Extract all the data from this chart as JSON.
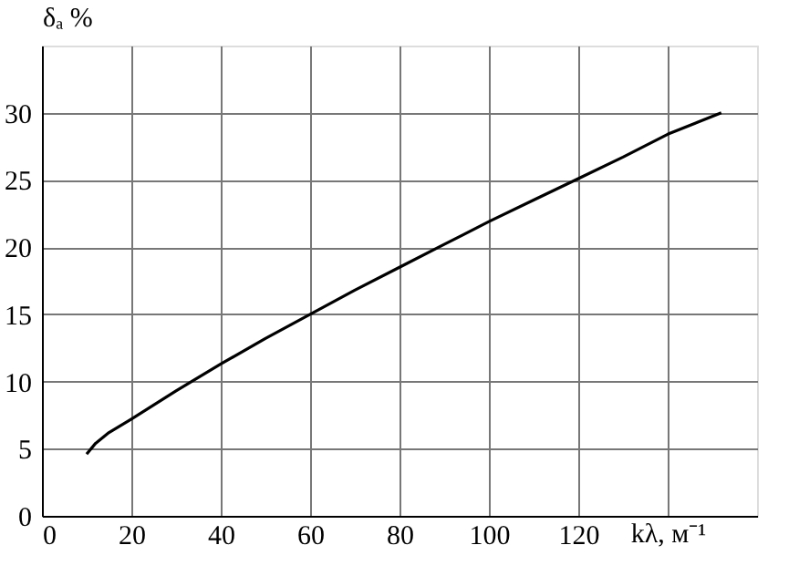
{
  "chart_data": {
    "type": "line",
    "xlabel": "kλ, м⁻¹",
    "ylabel": "δₐ %",
    "x": [
      10,
      12,
      15,
      20,
      30,
      40,
      50,
      60,
      70,
      80,
      90,
      100,
      110,
      120,
      130,
      140,
      152
    ],
    "series": [
      {
        "color": "#000000",
        "values": [
          4.6,
          5.4,
          6.2,
          7.2,
          9.3,
          11.3,
          13.2,
          15.0,
          16.8,
          18.5,
          20.2,
          21.9,
          23.5,
          25.1,
          26.7,
          28.4,
          30.0
        ]
      }
    ],
    "xlim": [
      0,
      160
    ],
    "ylim": [
      0,
      35
    ],
    "xticks": [
      0,
      20,
      40,
      60,
      80,
      100,
      120,
      {
        "value": 140,
        "label": null
      }
    ],
    "yticks": [
      0,
      5,
      10,
      15,
      20,
      25,
      30
    ],
    "grid": true,
    "marker": "none",
    "line_style": "solid"
  }
}
